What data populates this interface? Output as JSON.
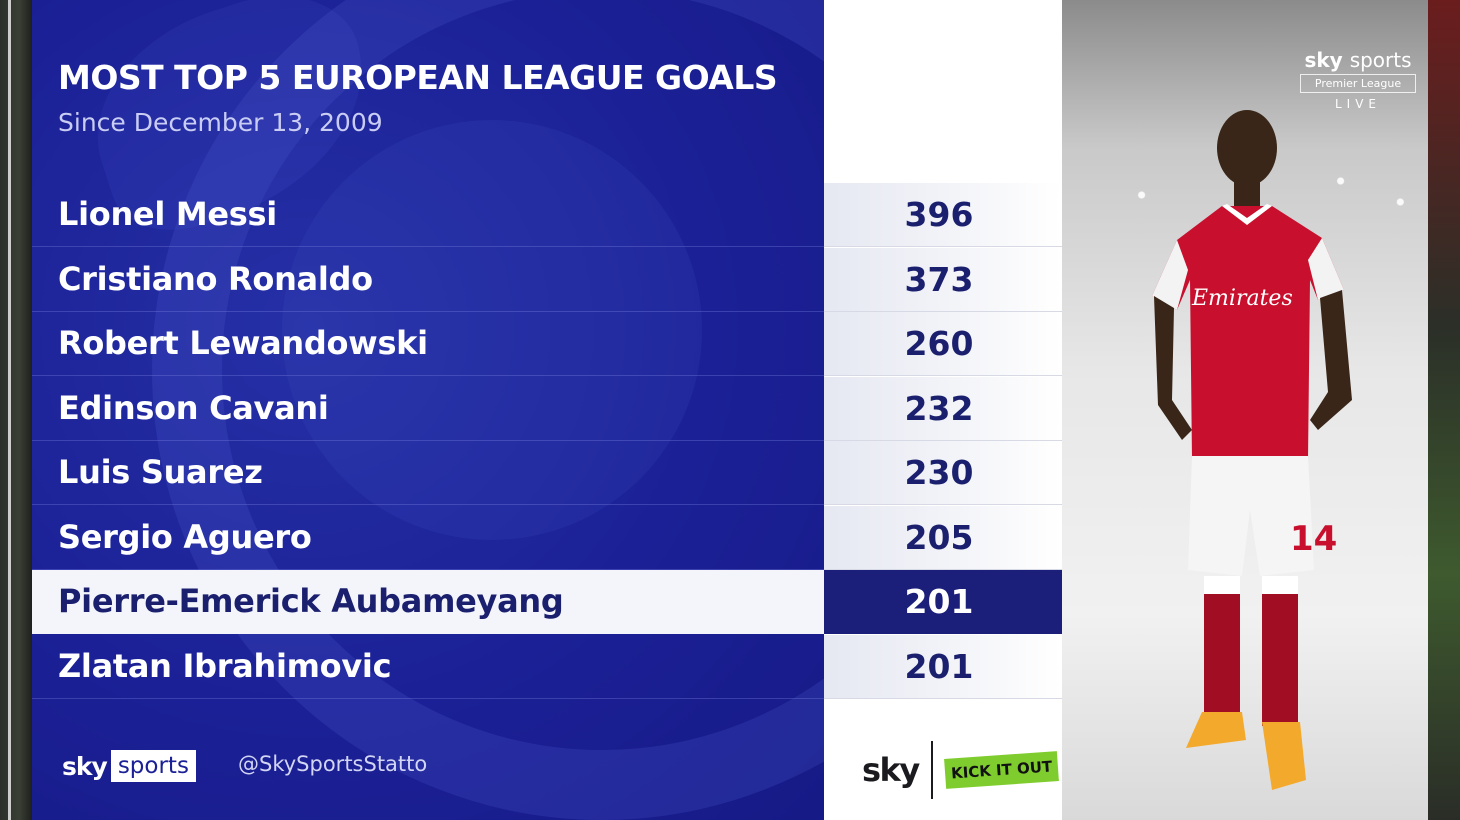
{
  "header": {
    "title": "MOST TOP 5 EUROPEAN LEAGUE GOALS",
    "subtitle": "Since December 13, 2009"
  },
  "table": {
    "rows": [
      {
        "name": "Lionel Messi",
        "goals": "396"
      },
      {
        "name": "Cristiano Ronaldo",
        "goals": "373"
      },
      {
        "name": "Robert Lewandowski",
        "goals": "260"
      },
      {
        "name": "Edinson Cavani",
        "goals": "232"
      },
      {
        "name": "Luis Suarez",
        "goals": "230"
      },
      {
        "name": "Sergio Aguero",
        "goals": "205"
      },
      {
        "name": "Pierre-Emerick Aubameyang",
        "goals": "201"
      },
      {
        "name": "Zlatan Ibrahimovic",
        "goals": "201"
      }
    ],
    "highlighted_row": 6
  },
  "footer": {
    "brand_sky": "sky",
    "brand_sports": "sports",
    "handle": "@SkySportsStatto",
    "sponsor_sky": "sky",
    "sponsor_kickitout": "KICK IT OUT"
  },
  "broadcast": {
    "logo_top_a": "sky",
    "logo_top_b": "sports",
    "logo_mid": "Premier League",
    "logo_live": "LIVE"
  },
  "player": {
    "shirt_sponsor": "Emirates",
    "shirt_number": "14"
  },
  "colors": {
    "panel_blue": "#1b2096",
    "value_text": "#1a1f6e",
    "highlight_dark": "#1b1f7a",
    "kick_it_out_green": "#7fcc2f",
    "arsenal_red": "#c8102e"
  }
}
